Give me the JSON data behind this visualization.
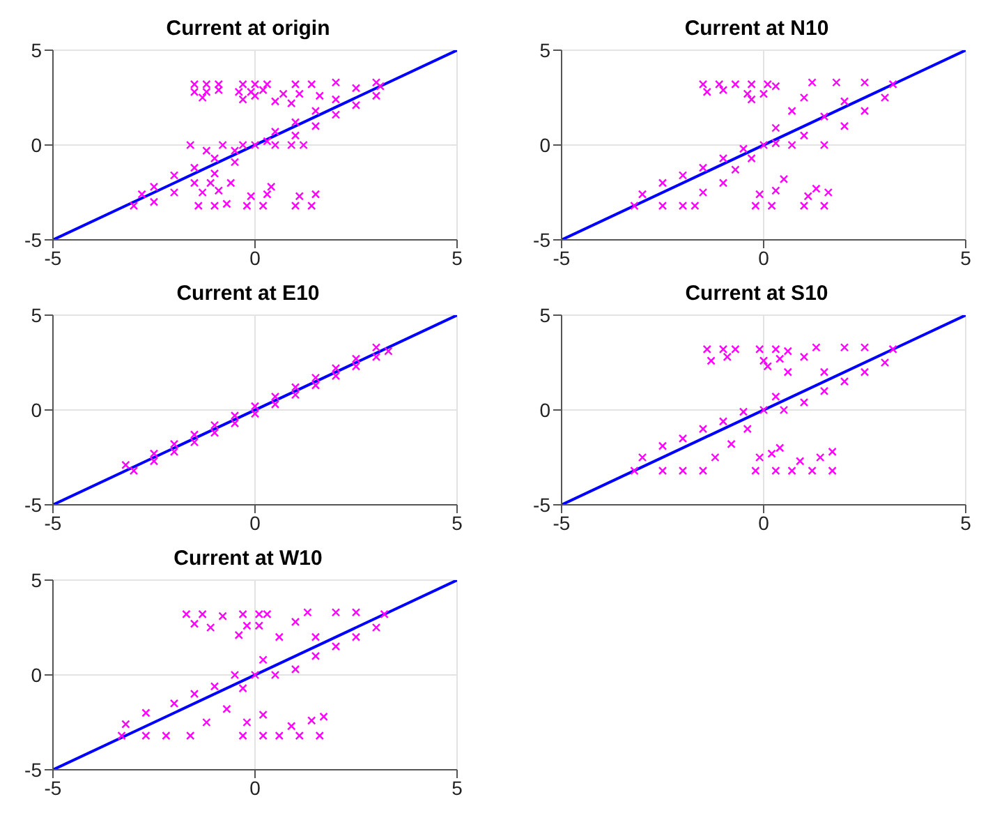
{
  "chart_data": [
    {
      "type": "scatter",
      "title": "Current at origin",
      "xlim": [
        -5,
        5
      ],
      "ylim": [
        -5,
        5
      ],
      "xticks": [
        -5,
        0,
        5
      ],
      "yticks": [
        -5,
        0,
        5
      ],
      "grid": true,
      "series": [
        {
          "type": "scatter",
          "color": "#ff00ff",
          "marker": "cross",
          "x": [
            -1.5,
            -1.2,
            -0.9,
            -1.5,
            -1.2,
            -0.9,
            -1.3,
            -0.3,
            0,
            0.3,
            -0.4,
            -0.1,
            0.2,
            -0.3,
            0,
            1.0,
            1.4,
            0.7,
            1.1,
            0.5,
            0.9,
            -3,
            -2.8,
            -2.5,
            -2.5,
            -2,
            -2,
            -1.5,
            -1.5,
            -1.6,
            -1.2,
            -1,
            -1,
            -0.8,
            -0.5,
            -0.5,
            -0.3,
            0,
            0.3,
            0.5,
            0.5,
            0.9,
            1,
            1,
            1.2,
            1.5,
            1.5,
            2,
            2,
            2.5,
            2.5,
            3,
            3,
            3.1,
            2,
            1.6,
            -1.4,
            -1,
            -0.7,
            -1.3,
            -0.9,
            -0.6,
            -1.1,
            -0.2,
            0.2,
            -0.1,
            0.3,
            0.4,
            1.0,
            1.4,
            1.1,
            1.5
          ],
          "values": [
            3.2,
            3.2,
            3.2,
            2.8,
            2.8,
            2.9,
            2.5,
            3.2,
            3.2,
            3.2,
            2.8,
            2.8,
            2.9,
            2.4,
            2.6,
            3.2,
            3.2,
            2.7,
            2.7,
            2.3,
            2.2,
            -3.2,
            -2.6,
            -3.0,
            -2.2,
            -2.5,
            -1.6,
            -2.0,
            -1.2,
            0,
            -0.3,
            -1.5,
            -0.7,
            0,
            -0.9,
            -0.3,
            0,
            0,
            0.2,
            0,
            0.7,
            0,
            0.5,
            1.2,
            0,
            1,
            1.8,
            1.6,
            2.4,
            2.1,
            3,
            2.6,
            3.3,
            3.1,
            3.3,
            2.6,
            -3.2,
            -3.2,
            -3.1,
            -2.5,
            -2.4,
            -2.0,
            -2.0,
            -3.2,
            -3.2,
            -2.7,
            -2.6,
            -2.2,
            -3.2,
            -3.2,
            -2.7,
            -2.6
          ]
        },
        {
          "type": "line",
          "color": "#0000ff",
          "x": [
            -5,
            5
          ],
          "values": [
            -5,
            5
          ]
        }
      ]
    },
    {
      "type": "scatter",
      "title": "Current at N10",
      "xlim": [
        -5,
        5
      ],
      "ylim": [
        -5,
        5
      ],
      "xticks": [
        -5,
        0,
        5
      ],
      "yticks": [
        -5,
        0,
        5
      ],
      "grid": true,
      "series": [
        {
          "type": "scatter",
          "color": "#ff00ff",
          "marker": "cross",
          "x": [
            -1.5,
            -1.1,
            -0.7,
            -1.4,
            -1,
            -0.3,
            0.1,
            0.3,
            -0.4,
            0,
            -0.3,
            -3.2,
            -3,
            -2.5,
            -2.5,
            -2,
            -2,
            -1.7,
            -1.5,
            -1.5,
            -1,
            -1,
            -0.7,
            -0.5,
            -0.3,
            0,
            0.3,
            0.3,
            0.7,
            0.7,
            1,
            1,
            1.2,
            1.5,
            1.5,
            1.8,
            2,
            2,
            2.5,
            2.5,
            3,
            3.2,
            -0.2,
            0.2,
            -0.1,
            0.3,
            0.5,
            1.0,
            1.5,
            1.1,
            1.6,
            1.3
          ],
          "values": [
            3.2,
            3.2,
            3.2,
            2.8,
            2.9,
            3.2,
            3.2,
            3.1,
            2.7,
            2.7,
            2.4,
            -3.2,
            -2.6,
            -3.2,
            -2,
            -3.2,
            -1.6,
            -3.2,
            -2.5,
            -1.2,
            -2,
            -0.7,
            -1.3,
            -0.2,
            -0.7,
            0,
            0.1,
            0.9,
            0,
            1.8,
            2.5,
            0.5,
            3.3,
            0,
            1.5,
            3.3,
            1,
            2.3,
            3.3,
            1.8,
            2.5,
            3.2,
            -3.2,
            -3.2,
            -2.6,
            -2.4,
            -1.8,
            -3.2,
            -3.2,
            -2.7,
            -2.5,
            -2.3
          ]
        },
        {
          "type": "line",
          "color": "#0000ff",
          "x": [
            -5,
            5
          ],
          "values": [
            -5,
            5
          ]
        }
      ]
    },
    {
      "type": "scatter",
      "title": "Current at E10",
      "xlim": [
        -5,
        5
      ],
      "ylim": [
        -5,
        5
      ],
      "xticks": [
        -5,
        0,
        5
      ],
      "yticks": [
        -5,
        0,
        5
      ],
      "grid": true,
      "series": [
        {
          "type": "scatter",
          "color": "#ff00ff",
          "marker": "cross",
          "x": [
            -3.2,
            -3,
            -2.5,
            -2.5,
            -2,
            -2,
            -1.5,
            -1.5,
            -1,
            -1,
            -0.5,
            -0.5,
            0,
            0,
            0.5,
            0.5,
            1,
            1,
            1.5,
            1.5,
            2,
            2,
            2.5,
            2.5,
            3,
            3,
            3.3
          ],
          "values": [
            -2.9,
            -3.2,
            -2.3,
            -2.7,
            -1.8,
            -2.2,
            -1.3,
            -1.7,
            -0.8,
            -1.2,
            -0.3,
            -0.7,
            0.2,
            -0.2,
            0.7,
            0.3,
            1.2,
            0.8,
            1.7,
            1.3,
            2.2,
            1.8,
            2.7,
            2.3,
            3.3,
            2.8,
            3.1
          ]
        },
        {
          "type": "line",
          "color": "#0000ff",
          "x": [
            -5,
            5
          ],
          "values": [
            -5,
            5
          ]
        }
      ]
    },
    {
      "type": "scatter",
      "title": "Current at S10",
      "xlim": [
        -5,
        5
      ],
      "ylim": [
        -5,
        5
      ],
      "xticks": [
        -5,
        0,
        5
      ],
      "yticks": [
        -5,
        0,
        5
      ],
      "grid": true,
      "series": [
        {
          "type": "scatter",
          "color": "#ff00ff",
          "marker": "cross",
          "x": [
            -1.4,
            -1,
            -0.7,
            -1.3,
            -0.9,
            -0.1,
            0.3,
            0.6,
            0,
            0.4,
            0.1,
            -3.2,
            -3,
            -2.5,
            -2.5,
            -2,
            -2,
            -1.5,
            -1.5,
            -1.2,
            -1,
            -0.8,
            -0.5,
            -0.4,
            0,
            0.3,
            0.5,
            0.6,
            1,
            1,
            1.3,
            1.5,
            1.5,
            2,
            2,
            2.5,
            2.5,
            3,
            3.2,
            -0.2,
            0.3,
            -0.1,
            0.2,
            0.4,
            0.7,
            1.2,
            1.7,
            0.9,
            1.4,
            1.7
          ],
          "values": [
            3.2,
            3.2,
            3.2,
            2.6,
            2.8,
            3.2,
            3.2,
            3.1,
            2.6,
            2.7,
            2.3,
            -3.2,
            -2.5,
            -3.2,
            -1.9,
            -3.2,
            -1.5,
            -3.2,
            -1,
            -2.5,
            -0.6,
            -1.8,
            -0.1,
            -1,
            0,
            0.7,
            0,
            2,
            0.4,
            2.8,
            3.3,
            1,
            2,
            3.3,
            1.5,
            3.3,
            2,
            2.5,
            3.2,
            -3.2,
            -3.2,
            -2.5,
            -2.3,
            -2,
            -3.2,
            -3.2,
            -3.2,
            -2.7,
            -2.5,
            -2.2
          ]
        },
        {
          "type": "line",
          "color": "#0000ff",
          "x": [
            -5,
            5
          ],
          "values": [
            -5,
            5
          ]
        }
      ]
    },
    {
      "type": "scatter",
      "title": "Current at W10",
      "xlim": [
        -5,
        5
      ],
      "ylim": [
        -5,
        5
      ],
      "xticks": [
        -5,
        0,
        5
      ],
      "yticks": [
        -5,
        0,
        5
      ],
      "grid": true,
      "series": [
        {
          "type": "scatter",
          "color": "#ff00ff",
          "marker": "cross",
          "x": [
            -1.7,
            -1.3,
            -0.8,
            -1.5,
            -1.1,
            -0.3,
            0.1,
            0.3,
            -0.2,
            0.1,
            -0.4,
            -3.3,
            -3.2,
            -2.7,
            -2.7,
            -2.2,
            -2,
            -1.6,
            -1.5,
            -1.2,
            -1,
            -0.7,
            -0.5,
            -0.3,
            0,
            0.2,
            0.5,
            0.6,
            1,
            1,
            1.3,
            1.5,
            1.5,
            2,
            2,
            2.5,
            2.5,
            3,
            3.2,
            -0.3,
            0.2,
            -0.2,
            0.2,
            0.6,
            1.1,
            1.6,
            0.9,
            1.4,
            1.7
          ],
          "values": [
            3.2,
            3.2,
            3.1,
            2.7,
            2.5,
            3.2,
            3.2,
            3.2,
            2.6,
            2.6,
            2.1,
            -3.2,
            -2.6,
            -3.2,
            -2,
            -3.2,
            -1.5,
            -3.2,
            -1,
            -2.5,
            -0.6,
            -1.8,
            0,
            -0.7,
            0,
            0.8,
            0,
            2,
            0.3,
            2.8,
            3.3,
            1,
            2,
            3.3,
            1.5,
            3.3,
            2,
            2.5,
            3.2,
            -3.2,
            -3.2,
            -2.5,
            -2.1,
            -3.2,
            -3.2,
            -3.2,
            -2.7,
            -2.4,
            -2.2
          ]
        },
        {
          "type": "line",
          "color": "#0000ff",
          "x": [
            -5,
            5
          ],
          "values": [
            -5,
            5
          ]
        }
      ]
    }
  ]
}
